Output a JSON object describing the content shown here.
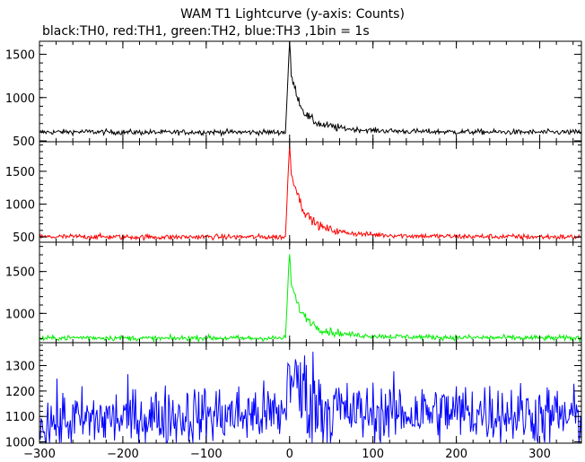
{
  "chart_data": {
    "type": "line",
    "title": "WAM T1 Lightcurve (y-axis: Counts)",
    "subtitle": "black:TH0, red:TH1, green:TH2, blue:TH3 ,1bin = 1s",
    "x_ticks": [
      -300,
      -200,
      -100,
      0,
      100,
      200,
      300
    ],
    "x_tick_labels": [
      "−300",
      "−200",
      "−100",
      "0",
      "100",
      "200",
      "300"
    ],
    "xlim": [
      -300,
      350
    ],
    "panels": [
      {
        "name": "TH0",
        "color": "#000000",
        "ylim": [
          490,
          1650
        ],
        "y_ticks": [
          500,
          1000,
          1500
        ],
        "y_tick_labels": [
          "500",
          "1000",
          "1500"
        ],
        "x": [
          -300,
          -250,
          -200,
          -150,
          -100,
          -50,
          -5,
          0,
          2,
          5,
          10,
          15,
          20,
          30,
          40,
          60,
          80,
          100,
          150,
          200,
          250,
          300,
          350
        ],
        "y": [
          600,
          605,
          600,
          598,
          602,
          600,
          600,
          1650,
          1250,
          1150,
          1000,
          870,
          800,
          720,
          680,
          650,
          630,
          620,
          608,
          604,
          602,
          600,
          600
        ]
      },
      {
        "name": "TH1",
        "color": "#ff0000",
        "ylim": [
          420,
          1950
        ],
        "y_ticks": [
          500,
          1000,
          1500
        ],
        "y_tick_labels": [
          "500",
          "1000",
          "1500"
        ],
        "x": [
          -300,
          -250,
          -200,
          -150,
          -100,
          -50,
          -5,
          0,
          2,
          5,
          10,
          15,
          20,
          30,
          40,
          60,
          80,
          100,
          150,
          200,
          250,
          300,
          350
        ],
        "y": [
          500,
          505,
          500,
          498,
          502,
          500,
          500,
          1950,
          1450,
          1350,
          1150,
          950,
          850,
          720,
          640,
          580,
          550,
          535,
          515,
          508,
          505,
          502,
          500
        ]
      },
      {
        "name": "TH2",
        "color": "#00ee00",
        "ylim": [
          650,
          1850
        ],
        "y_ticks": [
          1000,
          1500
        ],
        "y_tick_labels": [
          "1000",
          "1500"
        ],
        "x": [
          -300,
          -250,
          -200,
          -150,
          -100,
          -50,
          -5,
          0,
          2,
          5,
          10,
          15,
          20,
          30,
          40,
          60,
          80,
          100,
          150,
          200,
          250,
          300,
          350
        ],
        "y": [
          700,
          712,
          705,
          700,
          708,
          702,
          705,
          1750,
          1350,
          1250,
          1100,
          1000,
          950,
          860,
          800,
          760,
          740,
          730,
          718,
          712,
          710,
          706,
          705
        ]
      },
      {
        "name": "TH3",
        "color": "#0000ff",
        "ylim": [
          995,
          1390
        ],
        "y_ticks": [
          1000,
          1100,
          1200,
          1300
        ],
        "y_tick_labels": [
          "1000",
          "1100",
          "1200",
          "1300"
        ],
        "x": [
          -300,
          -250,
          -200,
          -150,
          -100,
          -50,
          -5,
          0,
          2,
          5,
          10,
          15,
          20,
          30,
          40,
          60,
          80,
          100,
          150,
          200,
          250,
          300,
          350
        ],
        "y": [
          1075,
          1085,
          1095,
          1100,
          1105,
          1108,
          1110,
          1380,
          1230,
          1220,
          1210,
          1200,
          1180,
          1160,
          1140,
          1120,
          1115,
          1112,
          1115,
          1118,
          1115,
          1105,
          1095
        ],
        "noise_amplitude": 60
      }
    ],
    "grid": false,
    "legend": "none"
  }
}
